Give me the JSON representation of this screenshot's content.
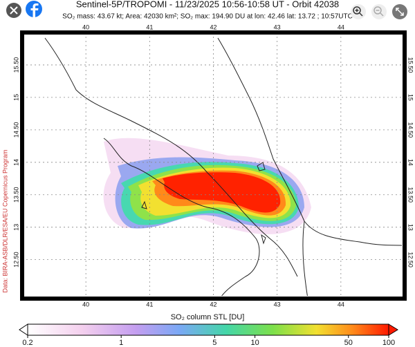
{
  "header": {
    "title": "Sentinel-5P/TROPOMI - 11/23/2025 10:56-10:58 UT - Orbit 42038",
    "subtitle": "SO₂ mass: 43.67 kt; Area: 42030 km²; SO₂ max: 194.90 DU at lon: 42.46 lat: 13.72 ; 10:57UTC"
  },
  "map": {
    "xlim": [
      39,
      45
    ],
    "xticks": [
      40,
      41,
      42,
      43,
      44
    ],
    "ylim": [
      11.9,
      16
    ],
    "yticks": [
      {
        "value": 12.5,
        "label": "12.50"
      },
      13,
      {
        "value": 13.5,
        "label": "13.50"
      },
      14,
      {
        "value": 14.5,
        "label": "14.50"
      },
      15,
      {
        "value": 15.5,
        "label": "15.50"
      }
    ],
    "credit": "Data: BIRA-ASB/DLR/ESA/EU Copernicus Program"
  },
  "colorbar": {
    "label": "SO₂ column STL [DU]",
    "lim": [
      0.2,
      100
    ],
    "log": true,
    "ticks": [
      0.2,
      1,
      5,
      10,
      50,
      100
    ]
  }
}
